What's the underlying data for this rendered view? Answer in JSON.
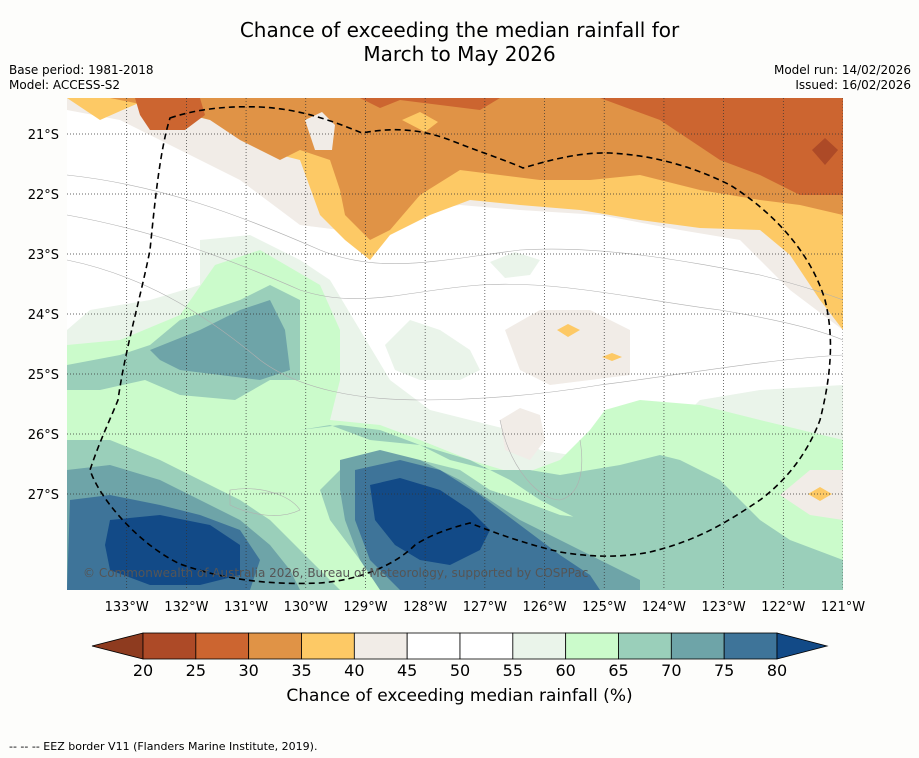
{
  "title_line1": "Chance of exceeding the median rainfall for",
  "title_line2": "March to May 2026",
  "base_period": "Base period: 1981-2018",
  "model": "Model: ACCESS-S2",
  "model_run": "Model run: 14/02/2026",
  "issued": "Issued: 16/02/2026",
  "copyright": "© Commonwealth of Australia 2026, Bureau of Meteorology, supported by COSPPac",
  "map_extent": {
    "lon": [
      -134,
      -121
    ],
    "lat": [
      -28.6,
      -20.4
    ]
  },
  "lat_labels": [
    "21°S",
    "22°S",
    "23°S",
    "24°S",
    "25°S",
    "26°S",
    "27°S"
  ],
  "lat_values": [
    -21,
    -22,
    -23,
    -24,
    -25,
    -26,
    -27
  ],
  "lon_labels": [
    "133°W",
    "132°W",
    "131°W",
    "130°W",
    "129°W",
    "128°W",
    "127°W",
    "126°W",
    "125°W",
    "124°W",
    "123°W",
    "122°W",
    "121°W"
  ],
  "lon_values": [
    -133,
    -132,
    -131,
    -130,
    -129,
    -128,
    -127,
    -126,
    -125,
    -124,
    -123,
    -122,
    -121
  ],
  "colorbar": {
    "title": "Chance of exceeding median rainfall (%)",
    "ticks": [
      "20",
      "25",
      "30",
      "35",
      "40",
      "45",
      "50",
      "55",
      "60",
      "65",
      "70",
      "75",
      "80"
    ],
    "under_color": "#8e3b1f",
    "over_color": "#124a87",
    "colors": [
      "#ad4a27",
      "#cc6530",
      "#e09346",
      "#fdc965",
      "#f1ece7",
      "#ffffff",
      "#ffffff",
      "#eaf4ea",
      "#cbfbcb",
      "#9acfba",
      "#6ea4a8",
      "#3e7499"
    ]
  },
  "footer": "-- -- -- EEZ border V11 (Flanders Marine Institute, 2019)."
}
